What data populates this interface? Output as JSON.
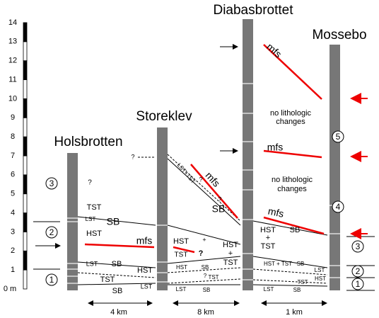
{
  "scale": {
    "unit": "0 m",
    "ticks": [
      1,
      2,
      3,
      4,
      5,
      6,
      7,
      8,
      9,
      10,
      11,
      12,
      13,
      14
    ]
  },
  "sections": [
    "Holsbrotten",
    "Storeklev",
    "Diabasbrottet",
    "Mossebo"
  ],
  "distances": [
    "4 km",
    "8 km",
    "1 km"
  ],
  "holsbrotten_units": [
    "3",
    "2",
    "1"
  ],
  "mossebo_units": [
    "5",
    "4",
    "3",
    "2",
    "1"
  ],
  "labels": [
    "?",
    "TST",
    "LST",
    "SB",
    "HST",
    "mfs",
    "LST",
    "SB",
    "HST",
    "TST",
    "LST",
    "SB",
    "?",
    "LST+TST",
    "?",
    "mfs",
    "?",
    "SB",
    "HST",
    "+",
    "TST",
    "?",
    "HST",
    "+",
    "TST",
    "HST",
    "SB",
    "TST",
    "?",
    "LST",
    "SB",
    "mfs",
    "no lithologic",
    "changes",
    "mfs",
    "no lithologic",
    "changes",
    "mfs",
    "HST",
    "+",
    "TST",
    "SB",
    "HST + TST",
    "SB",
    "LST",
    "HST",
    "TST",
    "LST",
    "SB"
  ]
}
